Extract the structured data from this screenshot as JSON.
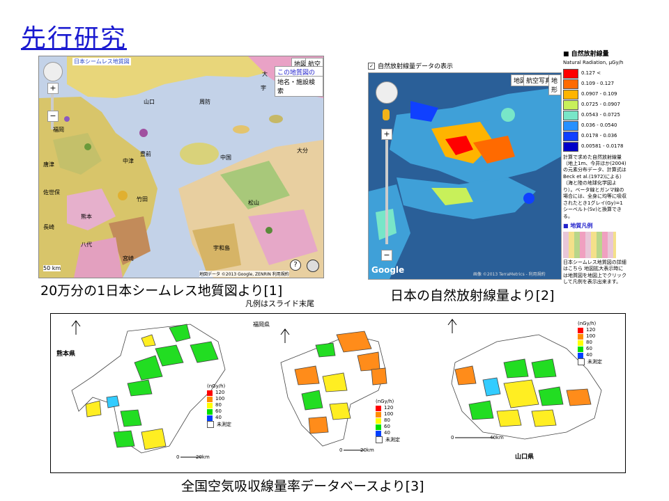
{
  "title": "先行研究",
  "geology": {
    "logo": "日本シームレス地質図",
    "map_btn": "地図",
    "photo_btn": "航空写真",
    "url_btn": "この地質図のURL",
    "search_btn": "地名・施設検索",
    "help_icon": "?",
    "copyright": "地図データ ©2013 Google, ZENRIN  利用規約",
    "places": [
      "福岡",
      "大分",
      "山口",
      "大",
      "宇",
      "中津",
      "豊前",
      "中国",
      "周防",
      "松山",
      "唐津",
      "佐世保",
      "熊本",
      "竹田",
      "宇和島",
      "宮崎",
      "長崎",
      "八代"
    ],
    "scale": "50 km",
    "caption": "20万分の1日本シームレス地質図より[1]",
    "note": "凡例はスライド末尾"
  },
  "radiation": {
    "checkbox_label": "自然放射線量データの表示",
    "map_btn": "地図",
    "photo_btn": "航空写真",
    "map2_btn": "地形",
    "google": "Google",
    "copyright": "画像 ©2013 TerraMetrics - 利用規約",
    "legend_title": "自然放射線量",
    "legend_subtitle": "Natural Radiation, μGy/h",
    "legend_rows": [
      {
        "label": "0.127 <",
        "color": "#ff0000"
      },
      {
        "label": "0.109 - 0.127",
        "color": "#ff6a00"
      },
      {
        "label": "0.0907 - 0.109",
        "color": "#ffb400"
      },
      {
        "label": "0.0725 - 0.0907",
        "color": "#c8f05a"
      },
      {
        "label": "0.0543 - 0.0725",
        "color": "#78e6c8"
      },
      {
        "label": "0.036 - 0.0540",
        "color": "#2890ff"
      },
      {
        "label": "0.0178 - 0.036",
        "color": "#1040ff"
      },
      {
        "label": "0.00581 - 0.0178",
        "color": "#0000c8"
      }
    ],
    "legend_note": "計算で求めた自然放射線量（地上1m、今井ほか(2004)の元素分布データ、計算式はBeck et al.(1972)による）（海と陸の地球化学図より）。ベータ線とガンマ線の場合には、全身に均等に吸収されたとき1グレイ(Gy)=1シーベルト(Sv)と換算できる。",
    "geo_legend_title": "地質凡例",
    "geo_legend_note": "日本シームレス地質図の詳細はこちら 地図拡大表示時には地質図を地図上でクリックして凡例を表示出来ます。",
    "caption": "日本の自然放射線量より[2]"
  },
  "air": {
    "map1_label": "熊本県",
    "map2_label": "福岡県",
    "map3_label": "山口県",
    "unit": "(nGy/h)",
    "levels": [
      {
        "label": "120",
        "color": "#ff0000"
      },
      {
        "label": "100",
        "color": "#ff8c00"
      },
      {
        "label": "80",
        "color": "#ffff00"
      },
      {
        "label": "60",
        "color": "#00e000"
      },
      {
        "label": "40",
        "color": "#0040ff"
      }
    ],
    "unmeasured": "未測定",
    "scale_zero": "0",
    "scale1": "20km",
    "scale2": "20km",
    "scale3": "40km",
    "caption": "全国空気吸収線量率データベースより[3]"
  },
  "colors": {
    "title": "#1a1ad0",
    "geo_base": "#f6e9b8",
    "sea": "#c3d2e8",
    "rad_sea": "#2a5f98"
  }
}
